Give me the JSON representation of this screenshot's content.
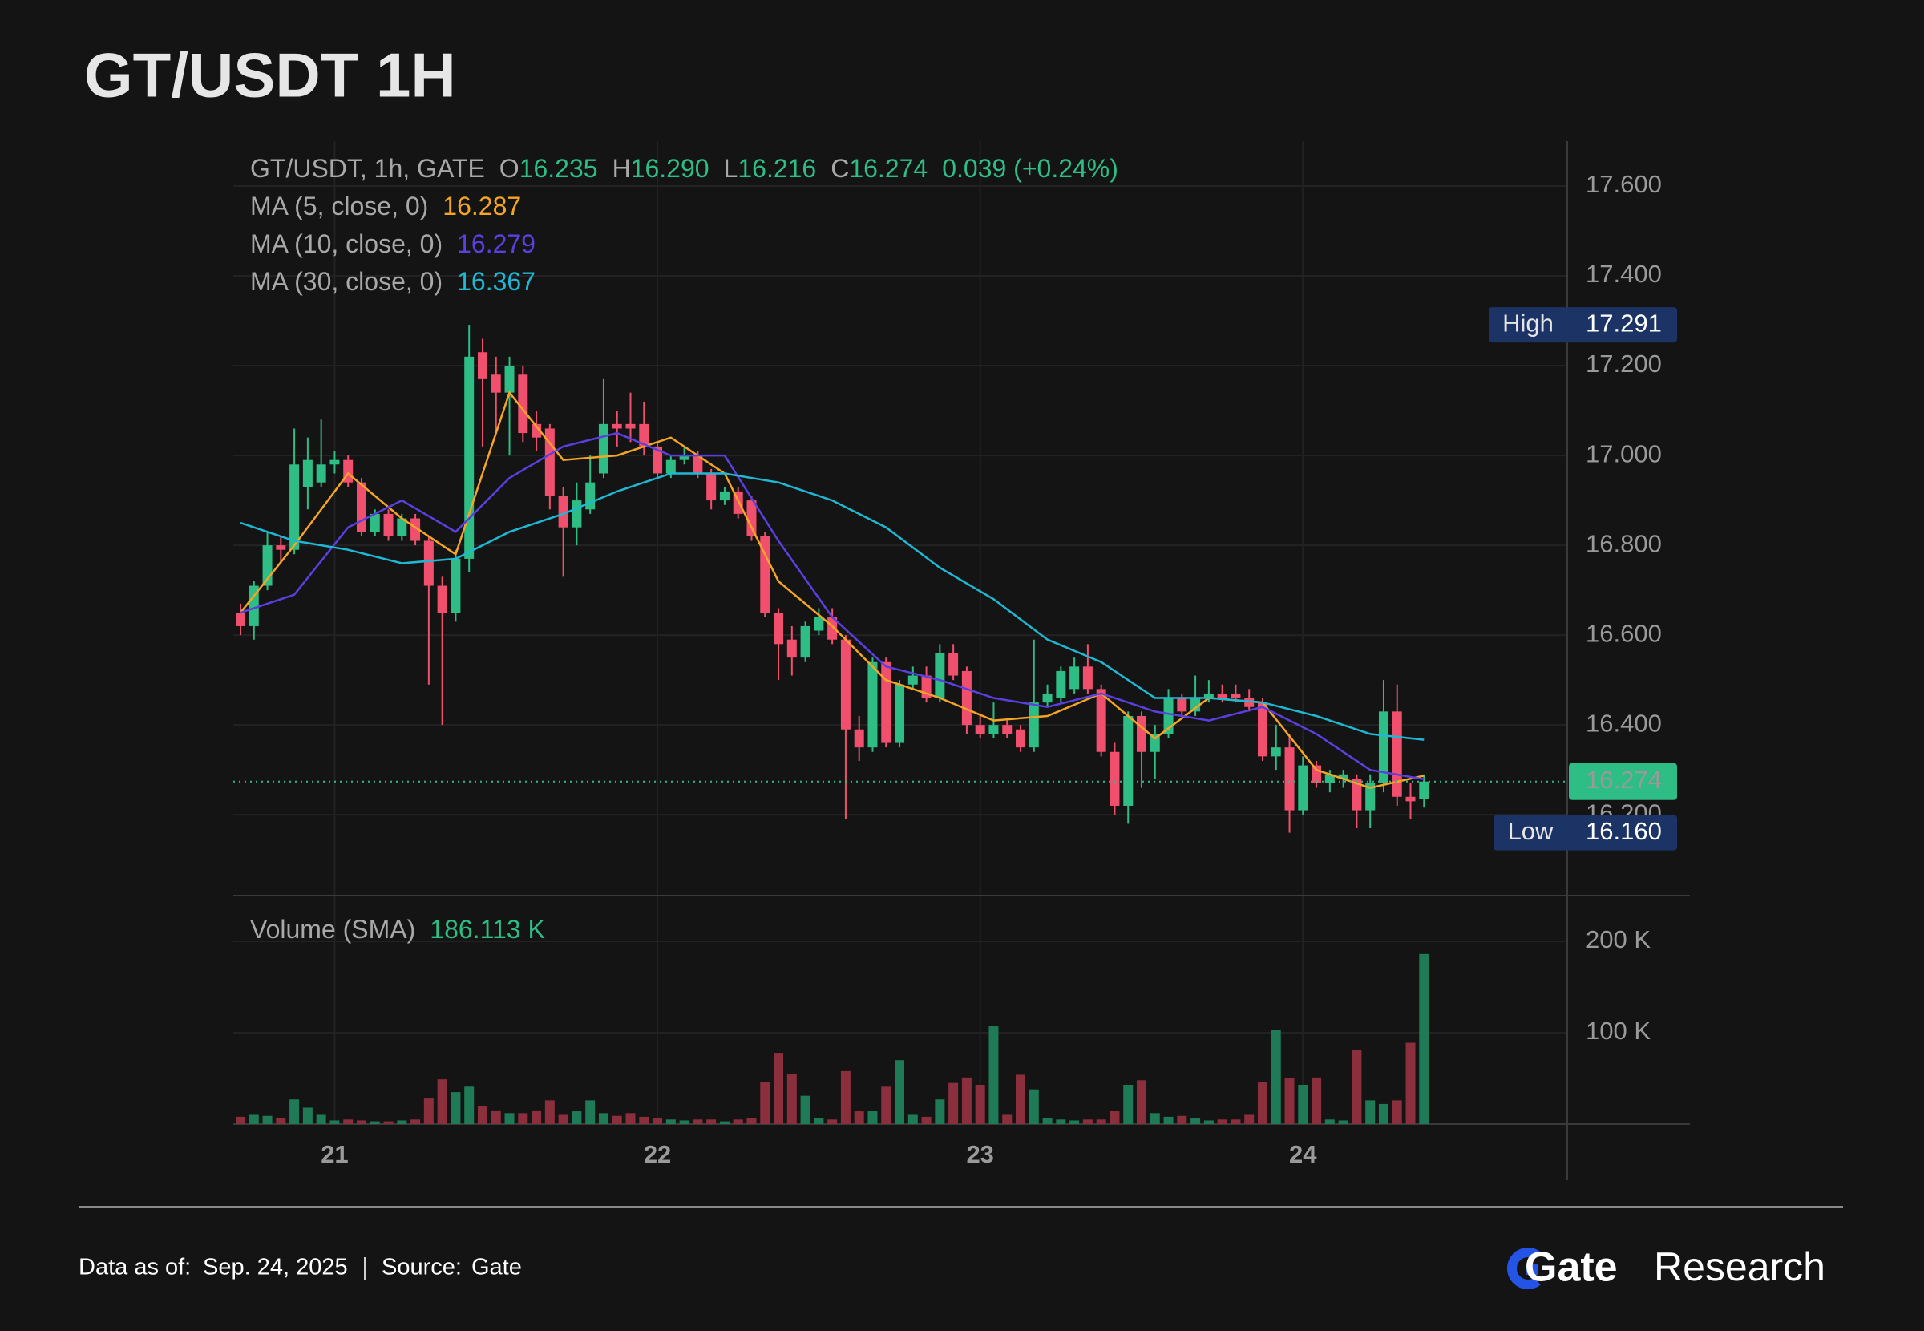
{
  "title": "GT/USDT 1H",
  "chart_data": {
    "type": "candlestick",
    "legend": {
      "symbol": "GT/USDT, 1h, GATE",
      "open_label": "O",
      "open": "16.235",
      "high_label": "H",
      "high": "16.290",
      "low_label": "L",
      "low": "16.216",
      "close_label": "C",
      "close": "16.274",
      "change": "0.039 (+0.24%)"
    },
    "up_color": "#2ebd85",
    "down_color": "#f0506e",
    "volume_up_color": "#1f7a57",
    "volume_down_color": "#8c2f3d",
    "open": [
      16.65,
      16.62,
      16.71,
      16.8,
      16.79,
      16.93,
      16.94,
      16.98,
      16.99,
      16.94,
      16.83,
      16.87,
      16.82,
      16.86,
      16.81,
      16.71,
      16.65,
      16.77,
      17.23,
      17.18,
      17.14,
      17.18,
      17.07,
      17.06,
      16.91,
      16.84,
      16.88,
      16.96,
      17.07,
      17.07,
      17.07,
      17.02,
      16.96,
      16.99,
      17.0,
      16.96,
      16.9,
      16.92,
      16.9,
      16.82,
      16.65,
      16.59,
      16.55,
      16.61,
      16.64,
      16.59,
      16.39,
      16.35,
      16.54,
      16.36,
      16.49,
      16.51,
      16.46,
      16.56,
      16.52,
      16.4,
      16.38,
      16.4,
      16.39,
      16.35,
      16.45,
      16.46,
      16.48,
      16.53,
      16.48,
      16.34,
      16.22,
      16.42,
      16.34,
      16.38,
      16.46,
      16.43,
      16.46,
      16.47,
      16.47,
      16.46,
      16.45,
      16.33,
      16.35,
      16.21,
      16.31,
      16.27,
      16.28,
      16.28,
      16.21,
      16.27,
      16.43,
      16.24,
      16.235
    ],
    "high": [
      16.67,
      16.72,
      16.83,
      16.82,
      17.06,
      17.04,
      17.08,
      17.01,
      17.0,
      16.95,
      16.88,
      16.88,
      16.87,
      16.87,
      16.82,
      16.73,
      16.79,
      17.291,
      17.26,
      17.22,
      17.22,
      17.2,
      17.1,
      17.07,
      16.93,
      16.94,
      17.0,
      17.17,
      17.1,
      17.14,
      17.12,
      17.03,
      17.0,
      17.02,
      17.01,
      16.97,
      16.93,
      16.93,
      16.91,
      16.83,
      16.66,
      16.62,
      16.63,
      16.66,
      16.66,
      16.6,
      16.42,
      16.55,
      16.55,
      16.5,
      16.53,
      16.53,
      16.58,
      16.58,
      16.53,
      16.42,
      16.45,
      16.41,
      16.4,
      16.59,
      16.49,
      16.53,
      16.55,
      16.58,
      16.49,
      16.36,
      16.43,
      16.43,
      16.4,
      16.48,
      16.47,
      16.51,
      16.5,
      16.49,
      16.49,
      16.48,
      16.46,
      16.4,
      16.38,
      16.33,
      16.32,
      16.3,
      16.3,
      16.29,
      16.29,
      16.5,
      16.49,
      16.27,
      16.29
    ],
    "low": [
      16.6,
      16.59,
      16.7,
      16.76,
      16.78,
      16.88,
      16.93,
      16.96,
      16.93,
      16.82,
      16.82,
      16.81,
      16.81,
      16.8,
      16.49,
      16.4,
      16.63,
      16.74,
      17.02,
      17.05,
      17.0,
      17.03,
      17.01,
      16.88,
      16.73,
      16.8,
      16.87,
      16.95,
      17.02,
      17.03,
      17.0,
      16.95,
      16.95,
      16.98,
      16.95,
      16.88,
      16.89,
      16.86,
      16.81,
      16.64,
      16.5,
      16.51,
      16.54,
      16.6,
      16.58,
      16.19,
      16.32,
      16.34,
      16.35,
      16.35,
      16.48,
      16.45,
      16.45,
      16.5,
      16.38,
      16.37,
      16.37,
      16.37,
      16.34,
      16.34,
      16.44,
      16.45,
      16.47,
      16.47,
      16.33,
      16.2,
      16.18,
      16.26,
      16.28,
      16.37,
      16.42,
      16.42,
      16.45,
      16.45,
      16.45,
      16.43,
      16.32,
      16.3,
      16.16,
      16.2,
      16.26,
      16.25,
      16.26,
      16.17,
      16.17,
      16.25,
      16.22,
      16.19,
      16.216
    ],
    "close": [
      16.62,
      16.71,
      16.8,
      16.79,
      16.98,
      16.99,
      16.98,
      16.99,
      16.94,
      16.83,
      16.87,
      16.82,
      16.86,
      16.81,
      16.71,
      16.65,
      16.77,
      17.22,
      17.17,
      17.14,
      17.2,
      17.05,
      17.04,
      16.91,
      16.84,
      16.9,
      16.94,
      17.07,
      17.06,
      17.06,
      17.02,
      16.96,
      16.99,
      17.0,
      16.96,
      16.9,
      16.92,
      16.87,
      16.82,
      16.65,
      16.58,
      16.55,
      16.62,
      16.64,
      16.59,
      16.39,
      16.35,
      16.54,
      16.36,
      16.49,
      16.51,
      16.46,
      16.56,
      16.51,
      16.4,
      16.38,
      16.4,
      16.38,
      16.35,
      16.45,
      16.47,
      16.52,
      16.53,
      16.48,
      16.34,
      16.22,
      16.42,
      16.34,
      16.38,
      16.46,
      16.43,
      16.46,
      16.47,
      16.46,
      16.46,
      16.44,
      16.33,
      16.35,
      16.21,
      16.31,
      16.27,
      16.29,
      16.29,
      16.21,
      16.27,
      16.43,
      16.24,
      16.23,
      16.274
    ],
    "volume": [
      8,
      11,
      9,
      7,
      27,
      18,
      11,
      4,
      5,
      4,
      3,
      3,
      4,
      5,
      28,
      49,
      35,
      41,
      20,
      15,
      12,
      12,
      15,
      26,
      11,
      14,
      26,
      12,
      9,
      12,
      8,
      7,
      5,
      4,
      5,
      5,
      3,
      5,
      7,
      46,
      78,
      55,
      31,
      7,
      5,
      58,
      14,
      14,
      41,
      70,
      11,
      8,
      27,
      45,
      51,
      43,
      107,
      11,
      54,
      38,
      7,
      5,
      4,
      5,
      5,
      14,
      43,
      48,
      12,
      8,
      9,
      7,
      4,
      5,
      5,
      11,
      46,
      103,
      50,
      43,
      51,
      5,
      4,
      81,
      26,
      22,
      26,
      89,
      186.113
    ],
    "series": [
      {
        "name": "MA (5, close, 0)",
        "color": "#f5a524",
        "last_value": 16.287,
        "x": [
          0,
          4,
          8,
          12,
          16,
          20,
          24,
          28,
          32,
          36,
          40,
          44,
          48,
          52,
          56,
          60,
          64,
          68,
          72,
          76,
          80,
          84,
          88
        ],
        "values": [
          16.65,
          16.8,
          16.96,
          16.86,
          16.78,
          17.14,
          16.99,
          17.0,
          17.04,
          16.96,
          16.72,
          16.62,
          16.5,
          16.46,
          16.41,
          16.42,
          16.47,
          16.37,
          16.46,
          16.45,
          16.3,
          16.26,
          16.287
        ]
      },
      {
        "name": "MA (10, close, 0)",
        "color": "#5b3fe0",
        "last_value": 16.279,
        "x": [
          0,
          4,
          8,
          12,
          16,
          20,
          24,
          28,
          32,
          36,
          40,
          44,
          48,
          52,
          56,
          60,
          64,
          68,
          72,
          76,
          80,
          84,
          88
        ],
        "values": [
          16.65,
          16.69,
          16.84,
          16.9,
          16.83,
          16.95,
          17.02,
          17.05,
          17.0,
          17.0,
          16.81,
          16.64,
          16.53,
          16.5,
          16.46,
          16.44,
          16.47,
          16.43,
          16.41,
          16.44,
          16.38,
          16.3,
          16.279
        ]
      },
      {
        "name": "MA (30, close, 0)",
        "color": "#1fb8d4",
        "last_value": 16.367,
        "x": [
          0,
          4,
          8,
          12,
          16,
          20,
          24,
          28,
          32,
          36,
          40,
          44,
          48,
          52,
          56,
          60,
          64,
          68,
          72,
          76,
          80,
          84,
          88
        ],
        "values": [
          16.85,
          16.81,
          16.79,
          16.76,
          16.77,
          16.83,
          16.87,
          16.92,
          16.96,
          16.96,
          16.94,
          16.9,
          16.84,
          16.75,
          16.68,
          16.59,
          16.54,
          16.46,
          16.46,
          16.45,
          16.42,
          16.38,
          16.367
        ]
      }
    ],
    "ylim": [
      16.02,
      17.7
    ],
    "yticks": [
      {
        "value": 16.2,
        "label": "16.200"
      },
      {
        "value": 16.4,
        "label": "16.400"
      },
      {
        "value": 16.6,
        "label": "16.600"
      },
      {
        "value": 16.8,
        "label": "16.800"
      },
      {
        "value": 17.0,
        "label": "17.000"
      },
      {
        "value": 17.2,
        "label": "17.200"
      },
      {
        "value": 17.4,
        "label": "17.400"
      },
      {
        "value": 17.6,
        "label": "17.600"
      }
    ],
    "xticks": [
      {
        "value": 7,
        "label": "21"
      },
      {
        "value": 31,
        "label": "22"
      },
      {
        "value": 55,
        "label": "23"
      },
      {
        "value": 79,
        "label": "24"
      }
    ],
    "volume_label": "Volume (SMA)",
    "volume_value": "186.113 K",
    "volume_ylim": [
      0,
      250
    ],
    "volume_yticks": [
      {
        "value": 100,
        "label": "100 K"
      },
      {
        "value": 200,
        "label": "200 K"
      }
    ],
    "high_marker": {
      "label": "High",
      "price": 17.291
    },
    "low_marker": {
      "label": "Low",
      "price": 16.16,
      "price_label": "16.160"
    },
    "last_price": 16.274,
    "grid": true
  },
  "footer": {
    "date_label": "Data as of:",
    "date": "Sep. 24, 2025",
    "source_label": "Source:",
    "source": "Gate",
    "brand": "Gate",
    "brand_suffix": "Research"
  }
}
